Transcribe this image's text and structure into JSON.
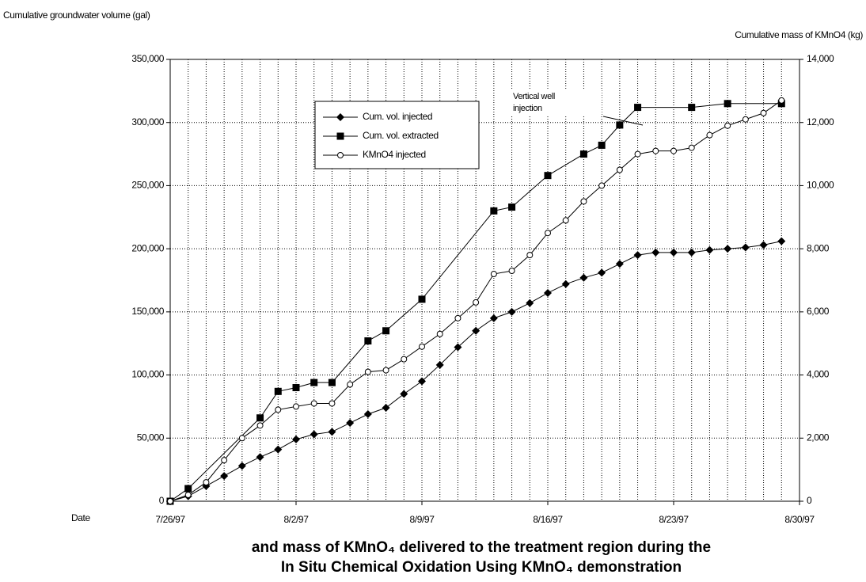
{
  "chart_data": {
    "type": "line",
    "y_title": "Cumulative groundwater volume (gal)",
    "y2_title": "Cumulative mass of KMnO4 (kg)",
    "x_title": "Date",
    "caption": [
      "and mass of KMnO₄ delivered to the treatment region during the",
      "In Situ Chemical Oxidation Using KMnO₄  demonstration"
    ],
    "annotation": [
      "Vertical well",
      "injection"
    ],
    "xlim": [
      "1997-07-26",
      "1997-08-30"
    ],
    "xticks": [
      {
        "value": "1997-07-26",
        "label": "7/26/97"
      },
      {
        "value": "1997-08-02",
        "label": "8/2/97"
      },
      {
        "value": "1997-08-09",
        "label": "8/9/97"
      },
      {
        "value": "1997-08-16",
        "label": "8/16/97"
      },
      {
        "value": "1997-08-23",
        "label": "8/23/97"
      },
      {
        "value": "1997-08-30",
        "label": "8/30/97"
      }
    ],
    "xgrid": "daily",
    "ylim": [
      0,
      350000
    ],
    "yticks": [
      0,
      {
        "value": 50000,
        "label": "50,000"
      },
      {
        "value": 100000,
        "label": "100,000"
      },
      {
        "value": 150000,
        "label": "150,000"
      },
      {
        "value": 200000,
        "label": "200,000"
      },
      {
        "value": 250000,
        "label": "250,000"
      },
      {
        "value": 300000,
        "label": "300,000"
      },
      {
        "value": 350000,
        "label": "350,000"
      }
    ],
    "y2lim": [
      0,
      14000
    ],
    "y2ticks": [
      0,
      {
        "value": 2000,
        "label": "2,000"
      },
      {
        "value": 4000,
        "label": "4,000"
      },
      {
        "value": 6000,
        "label": "6,000"
      },
      {
        "value": 8000,
        "label": "8,000"
      },
      {
        "value": 10000,
        "label": "10,000"
      },
      {
        "value": 12000,
        "label": "12,000"
      },
      {
        "value": 14000,
        "label": "14,000"
      }
    ],
    "grid": true,
    "series": [
      {
        "name": "Cum. vol. injected",
        "color": "#000000",
        "marker": "diamond",
        "x": [
          "1997-07-26",
          "1997-07-27",
          "1997-07-28",
          "1997-07-29",
          "1997-07-30",
          "1997-07-31",
          "1997-08-01",
          "1997-08-02",
          "1997-08-03",
          "1997-08-04",
          "1997-08-05",
          "1997-08-06",
          "1997-08-07",
          "1997-08-08",
          "1997-08-09",
          "1997-08-10",
          "1997-08-11",
          "1997-08-12",
          "1997-08-13",
          "1997-08-14",
          "1997-08-15",
          "1997-08-16",
          "1997-08-17",
          "1997-08-18",
          "1997-08-19",
          "1997-08-20",
          "1997-08-21",
          "1997-08-22",
          "1997-08-23",
          "1997-08-24",
          "1997-08-25",
          "1997-08-26",
          "1997-08-27",
          "1997-08-28",
          "1997-08-29"
        ],
        "values": [
          0,
          4000,
          12000,
          20000,
          28000,
          35000,
          41000,
          49000,
          53000,
          55000,
          62000,
          69000,
          74000,
          85000,
          95000,
          108000,
          122000,
          135000,
          145000,
          150000,
          157000,
          165000,
          172000,
          177000,
          181000,
          188000,
          195000,
          197000,
          197000,
          197000,
          199000,
          200000,
          201000,
          203000,
          206000
        ]
      },
      {
        "name": "Cum. vol. extracted",
        "color": "#000000",
        "marker": "square",
        "x": [
          "1997-07-26",
          "1997-07-27",
          "1997-07-31",
          "1997-08-01",
          "1997-08-02",
          "1997-08-03",
          "1997-08-04",
          "1997-08-06",
          "1997-08-07",
          "1997-08-09",
          "1997-08-13",
          "1997-08-14",
          "1997-08-16",
          "1997-08-18",
          "1997-08-19",
          "1997-08-20",
          "1997-08-21",
          "1997-08-24",
          "1997-08-26",
          "1997-08-29"
        ],
        "values": [
          0,
          10000,
          66000,
          87000,
          90000,
          94000,
          94000,
          127000,
          135000,
          160000,
          230000,
          233000,
          258000,
          275000,
          282000,
          298000,
          312000,
          312000,
          315000,
          315000
        ]
      },
      {
        "name": "KMnO4 injected",
        "color": "#000000",
        "marker": "circle",
        "axis": "y2",
        "x": [
          "1997-07-26",
          "1997-07-27",
          "1997-07-28",
          "1997-07-29",
          "1997-07-30",
          "1997-07-31",
          "1997-08-01",
          "1997-08-02",
          "1997-08-03",
          "1997-08-04",
          "1997-08-05",
          "1997-08-06",
          "1997-08-07",
          "1997-08-08",
          "1997-08-09",
          "1997-08-10",
          "1997-08-11",
          "1997-08-12",
          "1997-08-13",
          "1997-08-14",
          "1997-08-15",
          "1997-08-16",
          "1997-08-17",
          "1997-08-18",
          "1997-08-19",
          "1997-08-20",
          "1997-08-21",
          "1997-08-22",
          "1997-08-23",
          "1997-08-24",
          "1997-08-25",
          "1997-08-26",
          "1997-08-27",
          "1997-08-28",
          "1997-08-29"
        ],
        "values": [
          0,
          200,
          600,
          1300,
          2000,
          2400,
          2900,
          3000,
          3100,
          3100,
          3700,
          4100,
          4150,
          4500,
          4900,
          5300,
          5800,
          6300,
          7200,
          7300,
          7800,
          8500,
          8900,
          9500,
          10000,
          10500,
          11000,
          11100,
          11100,
          11200,
          11600,
          11900,
          12100,
          12300,
          12700
        ]
      }
    ]
  }
}
